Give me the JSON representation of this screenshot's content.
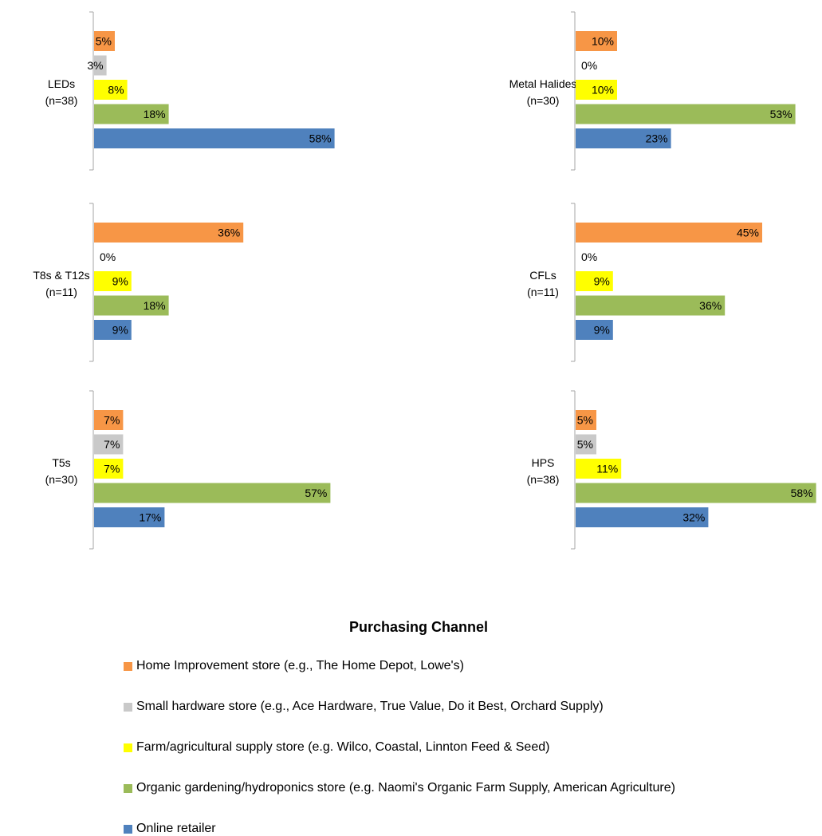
{
  "chart_data": {
    "type": "bar",
    "orientation": "horizontal",
    "legend": {
      "title": "Purchasing Channel",
      "placement": "bottom",
      "entries": [
        {
          "name": "Home Improvement store (e.g., The Home Depot, Lowe's)",
          "color": "#F79646"
        },
        {
          "name": "Small hardware store (e.g., Ace Hardware, True Value, Do it Best, Orchard Supply)",
          "color": "#C9C9C9"
        },
        {
          "name": "Farm/agricultural supply store (e.g. Wilco, Coastal, Linnton Feed & Seed)",
          "color": "#FFFF00"
        },
        {
          "name": "Organic gardening/hydroponics store (e.g. Naomi's Organic Farm Supply, American Agriculture)",
          "color": "#9BBB59"
        },
        {
          "name": "Online retailer",
          "color": "#4F81BD"
        }
      ]
    },
    "charts": [
      {
        "category": "LEDs",
        "n": "(n=38)",
        "values": [
          5,
          3,
          8,
          18,
          58
        ],
        "labels": [
          "5%",
          "3%",
          "8%",
          "18%",
          "58%"
        ]
      },
      {
        "category": "Metal Halides",
        "n": "(n=30)",
        "values": [
          10,
          0,
          10,
          53,
          23
        ],
        "labels": [
          "10%",
          "0%",
          "10%",
          "53%",
          "23%"
        ]
      },
      {
        "category": "T8s & T12s",
        "n": "(n=11)",
        "values": [
          36,
          0,
          9,
          18,
          9
        ],
        "labels": [
          "36%",
          "0%",
          "9%",
          "18%",
          "9%"
        ]
      },
      {
        "category": "CFLs",
        "n": "(n=11)",
        "values": [
          45,
          0,
          9,
          36,
          9
        ],
        "labels": [
          "45%",
          "0%",
          "9%",
          "36%",
          "9%"
        ]
      },
      {
        "category": "T5s",
        "n": "(n=30)",
        "values": [
          7,
          7,
          7,
          57,
          17
        ],
        "labels": [
          "7%",
          "7%",
          "7%",
          "57%",
          "17%"
        ]
      },
      {
        "category": "HPS",
        "n": "(n=38)",
        "values": [
          5,
          5,
          11,
          58,
          32
        ],
        "labels": [
          "5%",
          "5%",
          "11%",
          "58%",
          "32%"
        ]
      }
    ]
  }
}
